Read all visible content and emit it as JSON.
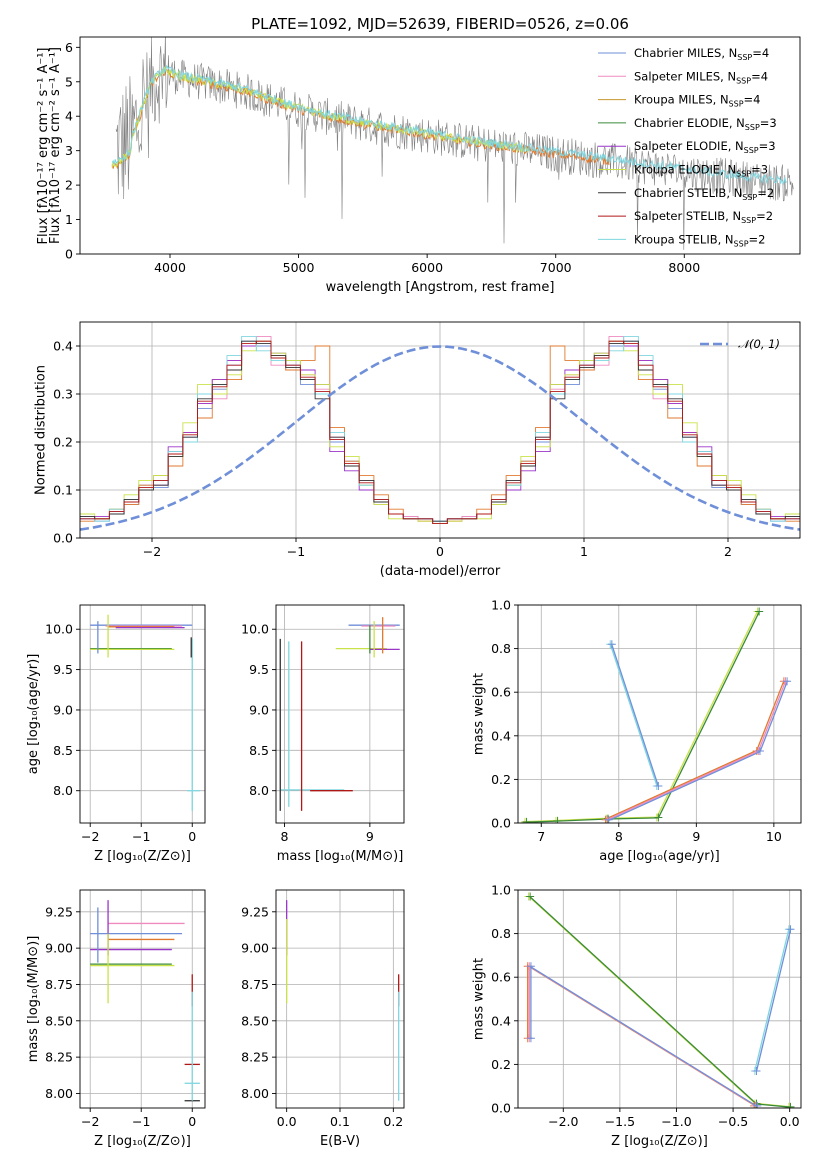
{
  "figure_title": "PLATE=1092, MJD=52639, FIBERID=0526, z=0.06",
  "colors": {
    "Chabrier MILES": "#6f8fd8",
    "Salpeter MILES": "#f08abf",
    "Kroupa MILES": "#c8962d",
    "Chabrier ELODIE": "#3a8a3a",
    "Salpeter ELODIE": "#9a35c8",
    "Kroupa ELODIE": "#c9e24a",
    "Chabrier STELIB": "#333333",
    "Salpeter STELIB": "#b01818",
    "Kroupa STELIB": "#7fd6e0",
    "data": "#808080",
    "model_orange": "#e07a30",
    "gaussian": "#6f8fd8"
  },
  "chart_data": [
    {
      "id": "spectrum",
      "type": "line",
      "title": "PLATE=1092, MJD=52639, FIBERID=0526, z=0.06",
      "xlabel": "wavelength [Angstrom, rest frame]",
      "ylabel": "Flux [fλ10⁻¹⁷ erg cm⁻² s⁻¹ A⁻¹]",
      "xlim": [
        3300,
        8900
      ],
      "ylim": [
        0,
        6.3
      ],
      "xticks": [
        4000,
        5000,
        6000,
        7000,
        8000
      ],
      "yticks": [
        0,
        1,
        2,
        3,
        4,
        5,
        6
      ],
      "legend_position": "upper-right",
      "legend": [
        {
          "base": "Chabrier MILES, N",
          "sub": "SSP",
          "tail": "=4"
        },
        {
          "base": "Salpeter MILES, N",
          "sub": "SSP",
          "tail": "=4"
        },
        {
          "base": "Kroupa MILES, N",
          "sub": "SSP",
          "tail": "=4"
        },
        {
          "base": "Chabrier ELODIE, N",
          "sub": "SSP",
          "tail": "=3"
        },
        {
          "base": "Salpeter ELODIE, N",
          "sub": "SSP",
          "tail": "=3"
        },
        {
          "base": "Kroupa ELODIE, N",
          "sub": "SSP",
          "tail": "=3"
        },
        {
          "base": "Chabrier STELIB, N",
          "sub": "SSP",
          "tail": "=2"
        },
        {
          "base": "Salpeter STELIB, N",
          "sub": "SSP",
          "tail": "=2"
        },
        {
          "base": "Kroupa STELIB, N",
          "sub": "SSP",
          "tail": "=2"
        }
      ],
      "continuum": {
        "x": [
          3580,
          3700,
          3850,
          3950,
          4100,
          4300,
          4600,
          4900,
          5200,
          5600,
          6000,
          6400,
          6800,
          7200,
          7600,
          8000,
          8400,
          8800
        ],
        "y": [
          3.0,
          3.3,
          4.9,
          5.3,
          5.1,
          4.95,
          4.7,
          4.3,
          4.0,
          3.7,
          3.45,
          3.2,
          3.0,
          2.8,
          2.6,
          2.4,
          2.2,
          2.05
        ]
      },
      "model_ranges": {
        "MILES": [
          3550,
          7420
        ],
        "ELODIE": [
          3550,
          6800
        ],
        "STELIB": [
          3550,
          8800
        ]
      }
    },
    {
      "id": "residuals",
      "type": "histogram",
      "xlabel": "(data-model)/error",
      "ylabel": "Normed distribution",
      "xlim": [
        -2.5,
        2.5
      ],
      "ylim": [
        0,
        0.45
      ],
      "xticks": [
        -2,
        -1,
        0,
        1,
        2
      ],
      "yticks": [
        0.0,
        0.1,
        0.2,
        0.3,
        0.4
      ],
      "gaussian_label": "𝒩(0, 1)",
      "bin_width": 0.1,
      "series": [
        {
          "color": "#6f8fd8",
          "values": [
            0.045,
            0.035,
            0.055,
            0.07,
            0.11,
            0.105,
            0.18,
            0.21,
            0.27,
            0.31,
            0.36,
            0.41,
            0.4,
            0.375,
            0.37,
            0.32,
            0.3,
            0.2,
            0.16,
            0.11,
            0.075,
            0.05,
            0.045,
            0.04,
            0.035
          ]
        },
        {
          "color": "#f08abf",
          "values": [
            0.04,
            0.04,
            0.05,
            0.08,
            0.1,
            0.12,
            0.17,
            0.22,
            0.28,
            0.29,
            0.37,
            0.4,
            0.42,
            0.36,
            0.35,
            0.34,
            0.31,
            0.21,
            0.15,
            0.12,
            0.07,
            0.05,
            0.045,
            0.035,
            0.03
          ]
        },
        {
          "color": "#e07a30",
          "values": [
            0.035,
            0.04,
            0.06,
            0.07,
            0.11,
            0.13,
            0.15,
            0.22,
            0.25,
            0.33,
            0.33,
            0.4,
            0.41,
            0.38,
            0.35,
            0.37,
            0.4,
            0.23,
            0.16,
            0.13,
            0.09,
            0.06,
            0.04,
            0.035,
            0.03
          ]
        },
        {
          "color": "#9a35c8",
          "values": [
            0.04,
            0.045,
            0.05,
            0.075,
            0.1,
            0.11,
            0.19,
            0.22,
            0.28,
            0.33,
            0.37,
            0.4,
            0.41,
            0.385,
            0.36,
            0.35,
            0.32,
            0.18,
            0.14,
            0.1,
            0.08,
            0.05,
            0.04,
            0.04,
            0.03
          ]
        },
        {
          "color": "#c9e24a",
          "values": [
            0.05,
            0.04,
            0.06,
            0.09,
            0.12,
            0.13,
            0.17,
            0.24,
            0.32,
            0.3,
            0.34,
            0.39,
            0.41,
            0.385,
            0.37,
            0.34,
            0.32,
            0.19,
            0.17,
            0.11,
            0.07,
            0.04,
            0.04,
            0.035,
            0.03
          ]
        },
        {
          "color": "#7fd6e0",
          "values": [
            0.04,
            0.035,
            0.06,
            0.08,
            0.1,
            0.12,
            0.18,
            0.2,
            0.3,
            0.32,
            0.38,
            0.42,
            0.39,
            0.37,
            0.36,
            0.33,
            0.3,
            0.22,
            0.15,
            0.11,
            0.08,
            0.05,
            0.04,
            0.04,
            0.035
          ]
        },
        {
          "color": "#333333",
          "values": [
            0.045,
            0.04,
            0.05,
            0.08,
            0.1,
            0.11,
            0.17,
            0.21,
            0.29,
            0.32,
            0.35,
            0.41,
            0.405,
            0.38,
            0.355,
            0.33,
            0.29,
            0.21,
            0.15,
            0.12,
            0.075,
            0.05,
            0.04,
            0.04,
            0.035
          ]
        },
        {
          "color": "#b01818",
          "values": [
            0.04,
            0.04,
            0.055,
            0.075,
            0.105,
            0.12,
            0.175,
            0.215,
            0.285,
            0.315,
            0.36,
            0.405,
            0.41,
            0.375,
            0.36,
            0.335,
            0.305,
            0.205,
            0.155,
            0.115,
            0.08,
            0.05,
            0.04,
            0.04,
            0.03
          ]
        }
      ]
    },
    {
      "id": "age_vs_Z",
      "type": "errorbar",
      "xlabel": "Z [log₁₀(Z/Z⊙)]",
      "ylabel": "age  [log₁₀(age/yr)]",
      "xlim": [
        -2.2,
        0.25
      ],
      "ylim": [
        7.6,
        10.3
      ],
      "xticks": [
        -2,
        -1,
        0
      ],
      "yticks": [
        8.0,
        8.5,
        9.0,
        9.5,
        10.0
      ],
      "hbars": [
        {
          "y": 10.05,
          "x0": -2.0,
          "x1": 0.0,
          "color": "#6f8fd8"
        },
        {
          "y": 10.04,
          "x0": -1.7,
          "x1": -0.2,
          "color": "#f08abf"
        },
        {
          "y": 10.03,
          "x0": -1.65,
          "x1": -0.35,
          "color": "#e07a30"
        },
        {
          "y": 10.02,
          "x0": -1.5,
          "x1": -0.15,
          "color": "#9a35c8"
        },
        {
          "y": 9.76,
          "x0": -2.0,
          "x1": -0.4,
          "color": "#3a8a3a"
        },
        {
          "y": 9.75,
          "x0": -2.0,
          "x1": -0.35,
          "color": "#c9e24a"
        },
        {
          "y": 8.0,
          "x0": -0.1,
          "x1": 0.15,
          "color": "#7fd6e0"
        }
      ],
      "vbars": [
        {
          "x": -1.65,
          "y0": 9.65,
          "y1": 10.18,
          "color": "#c9e24a"
        },
        {
          "x": -1.85,
          "y0": 9.7,
          "y1": 10.1,
          "color": "#6f8fd8"
        },
        {
          "x": 0.0,
          "y0": 7.75,
          "y1": 9.88,
          "color": "#7fd6e0"
        },
        {
          "x": -0.02,
          "y0": 9.65,
          "y1": 9.9,
          "color": "#333333"
        }
      ]
    },
    {
      "id": "age_vs_mass",
      "type": "errorbar",
      "xlabel": "mass [log₁₀(M/M⊙)]",
      "ylabel": "",
      "xlim": [
        7.9,
        9.4
      ],
      "ylim": [
        7.6,
        10.3
      ],
      "xticks": [
        8,
        9
      ],
      "yticks": [
        8.0,
        8.5,
        9.0,
        9.5,
        10.0
      ],
      "hbars": [
        {
          "y": 10.05,
          "x0": 8.75,
          "x1": 9.35,
          "color": "#6f8fd8"
        },
        {
          "y": 10.04,
          "x0": 8.9,
          "x1": 9.3,
          "color": "#f08abf"
        },
        {
          "y": 9.76,
          "x0": 8.6,
          "x1": 9.2,
          "color": "#c9e24a"
        },
        {
          "y": 9.75,
          "x0": 9.0,
          "x1": 9.35,
          "color": "#9a35c8"
        },
        {
          "y": 8.01,
          "x0": 7.95,
          "x1": 8.7,
          "color": "#7fd6e0"
        },
        {
          "y": 8.0,
          "x0": 8.3,
          "x1": 8.8,
          "color": "#b01818"
        }
      ],
      "vbars": [
        {
          "x": 9.05,
          "y0": 9.65,
          "y1": 10.1,
          "color": "#c9e24a"
        },
        {
          "x": 9.15,
          "y0": 9.7,
          "y1": 10.15,
          "color": "#e07a30"
        },
        {
          "x": 9.0,
          "y0": 9.7,
          "y1": 10.05,
          "color": "#3a8a3a"
        },
        {
          "x": 7.95,
          "y0": 7.75,
          "y1": 9.88,
          "color": "#333333"
        },
        {
          "x": 8.05,
          "y0": 7.8,
          "y1": 9.85,
          "color": "#7fd6e0"
        },
        {
          "x": 8.2,
          "y0": 7.75,
          "y1": 9.85,
          "color": "#b01818"
        }
      ]
    },
    {
      "id": "weight_vs_age",
      "type": "line",
      "xlabel": "age  [log₁₀(age/yr)]",
      "ylabel": "mass weight",
      "xlim": [
        6.7,
        10.35
      ],
      "ylim": [
        0,
        1
      ],
      "xticks": [
        7,
        8,
        9,
        10
      ],
      "yticks": [
        0.0,
        0.2,
        0.4,
        0.6,
        0.8,
        1.0
      ],
      "series": [
        {
          "group": "STELIB",
          "colors": [
            "#7fd6e0",
            "#6f8fd8"
          ],
          "x": [
            7.9,
            8.5
          ],
          "y": [
            0.82,
            0.17
          ]
        },
        {
          "group": "ELODIE",
          "colors": [
            "#c9e24a",
            "#3a8a3a"
          ],
          "x": [
            6.8,
            7.2,
            7.85,
            8.5,
            9.8
          ],
          "y": [
            0.005,
            0.01,
            0.02,
            0.025,
            0.97
          ]
        },
        {
          "group": "MILES",
          "colors": [
            "#e07a30",
            "#f08abf",
            "#6f8fd8"
          ],
          "x": [
            7.85,
            9.8,
            10.15
          ],
          "y": [
            0.015,
            0.33,
            0.65
          ]
        }
      ]
    },
    {
      "id": "mass_vs_Z",
      "type": "errorbar",
      "xlabel": "Z [log₁₀(Z/Z⊙)]",
      "ylabel": "mass [log₁₀(M/M⊙)]",
      "xlim": [
        -2.2,
        0.25
      ],
      "ylim": [
        7.9,
        9.4
      ],
      "xticks": [
        -2,
        -1,
        0
      ],
      "yticks": [
        8.0,
        8.25,
        8.5,
        8.75,
        9.0,
        9.25
      ],
      "hbars": [
        {
          "y": 9.17,
          "x0": -1.65,
          "x1": -0.15,
          "color": "#f08abf"
        },
        {
          "y": 9.1,
          "x0": -2.0,
          "x1": -0.2,
          "color": "#6f8fd8"
        },
        {
          "y": 9.06,
          "x0": -1.65,
          "x1": -0.35,
          "color": "#e07a30"
        },
        {
          "y": 8.99,
          "x0": -2.0,
          "x1": -0.4,
          "color": "#9a35c8"
        },
        {
          "y": 8.89,
          "x0": -2.0,
          "x1": -0.4,
          "color": "#3a8a3a"
        },
        {
          "y": 8.88,
          "x0": -2.0,
          "x1": -0.35,
          "color": "#c9e24a"
        },
        {
          "y": 8.2,
          "x0": -0.15,
          "x1": 0.15,
          "color": "#b01818"
        },
        {
          "y": 8.07,
          "x0": -0.15,
          "x1": 0.15,
          "color": "#7fd6e0"
        },
        {
          "y": 7.95,
          "x0": -0.15,
          "x1": 0.15,
          "color": "#333333"
        }
      ],
      "vbars": [
        {
          "x": -1.85,
          "y0": 8.9,
          "y1": 9.28,
          "color": "#6f8fd8"
        },
        {
          "x": -1.65,
          "y0": 8.95,
          "y1": 9.33,
          "color": "#9a35c8"
        },
        {
          "x": -1.65,
          "y0": 8.62,
          "y1": 9.1,
          "color": "#c9e24a"
        },
        {
          "x": 0.0,
          "y0": 8.6,
          "y1": 8.82,
          "color": "#b01818"
        },
        {
          "x": 0.0,
          "y0": 7.95,
          "y1": 8.7,
          "color": "#7fd6e0"
        }
      ]
    },
    {
      "id": "mass_vs_EBV",
      "type": "errorbar",
      "xlabel": "E(B-V)",
      "ylabel": "",
      "xlim": [
        -0.02,
        0.22
      ],
      "ylim": [
        7.9,
        9.4
      ],
      "xticks": [
        0.0,
        0.1,
        0.2
      ],
      "yticks": [
        8.0,
        8.25,
        8.5,
        8.75,
        9.0,
        9.25
      ],
      "hbars": [],
      "vbars": [
        {
          "x": 0.0,
          "y0": 8.95,
          "y1": 9.33,
          "color": "#9a35c8"
        },
        {
          "x": 0.0,
          "y0": 8.62,
          "y1": 9.2,
          "color": "#c9e24a"
        },
        {
          "x": 0.21,
          "y0": 8.6,
          "y1": 8.82,
          "color": "#b01818"
        },
        {
          "x": 0.21,
          "y0": 7.95,
          "y1": 8.7,
          "color": "#7fd6e0"
        }
      ]
    },
    {
      "id": "weight_vs_Z",
      "type": "line",
      "xlabel": "Z [log₁₀(Z/Z⊙)]",
      "ylabel": "mass weight",
      "xlim": [
        -2.4,
        0.1
      ],
      "ylim": [
        0,
        1
      ],
      "xticks": [
        -2.0,
        -1.5,
        -1.0,
        -0.5,
        0.0
      ],
      "yticks": [
        0.0,
        0.2,
        0.4,
        0.6,
        0.8,
        1.0
      ],
      "series": [
        {
          "group": "STELIB",
          "colors": [
            "#7fd6e0",
            "#6f8fd8"
          ],
          "x": [
            -0.3,
            0.0
          ],
          "y": [
            0.17,
            0.82
          ]
        },
        {
          "group": "ELODIE",
          "colors": [
            "#c9e24a",
            "#3a8a3a"
          ],
          "x": [
            -2.3,
            -0.3,
            0.0
          ],
          "y": [
            0.97,
            0.02,
            0.005
          ]
        },
        {
          "group": "MILES",
          "colors": [
            "#e07a30",
            "#f08abf",
            "#6f8fd8"
          ],
          "x": [
            -2.3,
            -2.3,
            -0.3
          ],
          "y": [
            0.32,
            0.65,
            0.01
          ]
        }
      ]
    }
  ]
}
